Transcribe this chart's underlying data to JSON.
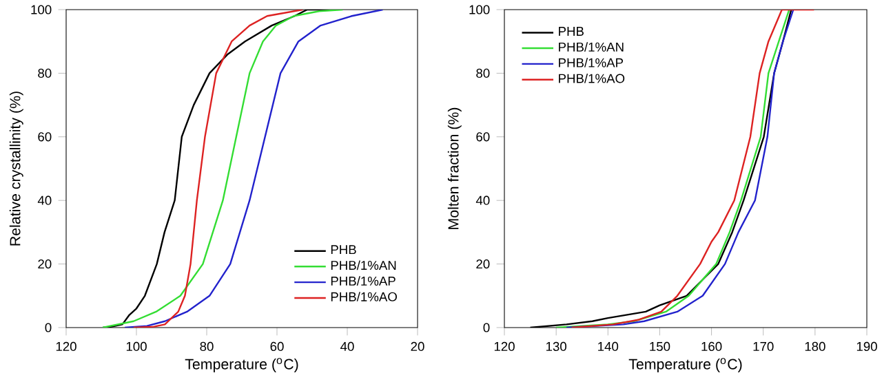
{
  "chart_data": [
    {
      "type": "line",
      "xlabel": "Temperature ($^{o}$C)",
      "ylabel": "Relative crystallinity (%)",
      "xlim": [
        120,
        20
      ],
      "ylim": [
        0,
        100
      ],
      "xticks": [
        120,
        100,
        80,
        60,
        40,
        20
      ],
      "yticks": [
        0,
        20,
        40,
        60,
        80,
        100
      ],
      "legend": "bottom right",
      "grid": false,
      "marker": "none",
      "line_style": "solid",
      "series": [
        {
          "name": "PHB",
          "color": "#000000",
          "x": [
            109.6,
            107,
            104,
            102,
            100,
            97.6,
            94.2,
            92,
            89.1,
            87.1,
            83.7,
            79.2,
            74,
            69.1,
            61.5,
            55,
            51.4,
            45
          ],
          "values": [
            0,
            0.3,
            1,
            4,
            6,
            10,
            20,
            30,
            40,
            60,
            70,
            80,
            86,
            90,
            95,
            98,
            100,
            100
          ]
        },
        {
          "name": "PHB/1%AN",
          "color": "#33dd33",
          "x": [
            109.6,
            100.8,
            94.4,
            87.5,
            81.1,
            75.4,
            71.6,
            67.8,
            64,
            60.3,
            55.2,
            48,
            41.3
          ],
          "values": [
            0,
            2,
            5,
            10,
            20,
            40,
            60,
            80,
            90,
            95,
            98,
            99.5,
            100
          ]
        },
        {
          "name": "PHB/1%AP",
          "color": "#2222cc",
          "x": [
            103.3,
            97,
            91.9,
            85.6,
            79.2,
            73.3,
            67.8,
            63.4,
            59,
            53.9,
            47.6,
            38.7,
            29.9
          ],
          "values": [
            0,
            0.5,
            2,
            5,
            10,
            20,
            40,
            60,
            80,
            90,
            95,
            98,
            100
          ]
        },
        {
          "name": "PHB/1%AO",
          "color": "#dd2222",
          "x": [
            100.8,
            95,
            91.9,
            88.1,
            86.2,
            84.6,
            82.8,
            80.5,
            77.3,
            72.9,
            67.8,
            62.8,
            52.7
          ],
          "values": [
            0,
            0.3,
            1,
            5,
            10,
            20,
            40,
            60,
            80,
            90,
            95,
            98,
            100
          ]
        }
      ]
    },
    {
      "type": "line",
      "xlabel": "Temperature ($^{o}$C)",
      "ylabel": "Molten fraction (%)",
      "xlim": [
        120,
        190
      ],
      "ylim": [
        0,
        100
      ],
      "xticks": [
        120,
        130,
        140,
        150,
        160,
        170,
        180,
        190
      ],
      "yticks": [
        0,
        20,
        40,
        60,
        80,
        100
      ],
      "legend": "top left",
      "grid": false,
      "marker": "none",
      "line_style": "solid",
      "series": [
        {
          "name": "PHB",
          "color": "#000000",
          "x": [
            125,
            132,
            137,
            140,
            147.3,
            150,
            155.2,
            161.3,
            164,
            166.2,
            170.1,
            172.1,
            173.8,
            175.4
          ],
          "values": [
            0,
            1,
            2,
            3,
            5,
            7,
            10,
            20,
            30,
            40,
            60,
            80,
            90,
            100
          ]
        },
        {
          "name": "PHB/1%AN",
          "color": "#33dd33",
          "x": [
            130,
            140,
            145,
            151.2,
            155.6,
            160.9,
            163.5,
            165.7,
            169.5,
            171,
            173,
            175
          ],
          "values": [
            0,
            1,
            2,
            5,
            10,
            20,
            30,
            40,
            60,
            80,
            90,
            100
          ]
        },
        {
          "name": "PHB/1%AP",
          "color": "#2222cc",
          "x": [
            132,
            143,
            147,
            153.4,
            158.3,
            162.6,
            165.2,
            168.4,
            170.8,
            172.1,
            173.8,
            175.8
          ],
          "values": [
            0,
            1,
            2,
            5,
            10,
            20,
            30,
            40,
            60,
            80,
            90,
            100
          ]
        },
        {
          "name": "PHB/1%AO",
          "color": "#dd2222",
          "x": [
            133,
            141,
            146,
            150.3,
            153.4,
            157.8,
            160,
            161.3,
            164.4,
            167.5,
            169.3,
            171,
            173.6,
            179.8
          ],
          "values": [
            0,
            1,
            2.5,
            5,
            10,
            20,
            27,
            30,
            40,
            60,
            80,
            90,
            100,
            100
          ]
        }
      ]
    }
  ]
}
